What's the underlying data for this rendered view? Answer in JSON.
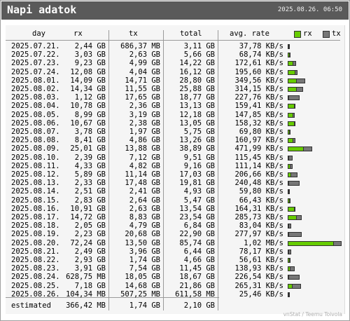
{
  "title": "Napi adatok",
  "timestamp": "2025.08.26. 06:50",
  "headers": {
    "day": "day",
    "rx": "rx",
    "tx": "tx",
    "total": "total",
    "avg_rate": "avg. rate"
  },
  "legend": {
    "rx": "rx",
    "tx": "tx"
  },
  "colors": {
    "rx": "#66cc00",
    "tx": "#777777",
    "titlebar": "#5a5a5a"
  },
  "rows": [
    {
      "day": "2025.07.21.",
      "rx": "2,44 GB",
      "tx": "686,37 MB",
      "total": "3,11 GB",
      "rate": "37,78 KB/s",
      "rx_gb": 2.44,
      "tx_gb": 0.67
    },
    {
      "day": "2025.07.22.",
      "rx": "3,03 GB",
      "tx": "2,63 GB",
      "total": "5,66 GB",
      "rate": "68,74 KB/s",
      "rx_gb": 3.03,
      "tx_gb": 2.63
    },
    {
      "day": "2025.07.23.",
      "rx": "9,23 GB",
      "tx": "4,99 GB",
      "total": "14,22 GB",
      "rate": "172,61 KB/s",
      "rx_gb": 9.23,
      "tx_gb": 4.99
    },
    {
      "day": "2025.07.24.",
      "rx": "12,08 GB",
      "tx": "4,04 GB",
      "total": "16,12 GB",
      "rate": "195,60 KB/s",
      "rx_gb": 12.08,
      "tx_gb": 4.04
    },
    {
      "day": "2025.08.01.",
      "rx": "14,09 GB",
      "tx": "14,71 GB",
      "total": "28,80 GB",
      "rate": "349,56 KB/s",
      "rx_gb": 14.09,
      "tx_gb": 14.71
    },
    {
      "day": "2025.08.02.",
      "rx": "14,34 GB",
      "tx": "11,55 GB",
      "total": "25,88 GB",
      "rate": "314,15 KB/s",
      "rx_gb": 14.34,
      "tx_gb": 11.55
    },
    {
      "day": "2025.08.03.",
      "rx": "1,12 GB",
      "tx": "17,65 GB",
      "total": "18,77 GB",
      "rate": "227,76 KB/s",
      "rx_gb": 1.12,
      "tx_gb": 17.65
    },
    {
      "day": "2025.08.04.",
      "rx": "10,78 GB",
      "tx": "2,36 GB",
      "total": "13,13 GB",
      "rate": "159,41 KB/s",
      "rx_gb": 10.78,
      "tx_gb": 2.36
    },
    {
      "day": "2025.08.05.",
      "rx": "8,99 GB",
      "tx": "3,19 GB",
      "total": "12,18 GB",
      "rate": "147,85 KB/s",
      "rx_gb": 8.99,
      "tx_gb": 3.19
    },
    {
      "day": "2025.08.06.",
      "rx": "10,67 GB",
      "tx": "2,38 GB",
      "total": "13,05 GB",
      "rate": "158,32 KB/s",
      "rx_gb": 10.67,
      "tx_gb": 2.38
    },
    {
      "day": "2025.08.07.",
      "rx": "3,78 GB",
      "tx": "1,97 GB",
      "total": "5,75 GB",
      "rate": "69,80 KB/s",
      "rx_gb": 3.78,
      "tx_gb": 1.97
    },
    {
      "day": "2025.08.08.",
      "rx": "8,41 GB",
      "tx": "4,86 GB",
      "total": "13,26 GB",
      "rate": "160,97 KB/s",
      "rx_gb": 8.41,
      "tx_gb": 4.86
    },
    {
      "day": "2025.08.09.",
      "rx": "25,01 GB",
      "tx": "13,88 GB",
      "total": "38,89 GB",
      "rate": "471,99 KB/s",
      "rx_gb": 25.01,
      "tx_gb": 13.88
    },
    {
      "day": "2025.08.10.",
      "rx": "2,39 GB",
      "tx": "7,12 GB",
      "total": "9,51 GB",
      "rate": "115,45 KB/s",
      "rx_gb": 2.39,
      "tx_gb": 7.12
    },
    {
      "day": "2025.08.11.",
      "rx": "4,33 GB",
      "tx": "4,82 GB",
      "total": "9,16 GB",
      "rate": "111,14 KB/s",
      "rx_gb": 4.33,
      "tx_gb": 4.82
    },
    {
      "day": "2025.08.12.",
      "rx": "5,89 GB",
      "tx": "11,14 GB",
      "total": "17,03 GB",
      "rate": "206,66 KB/s",
      "rx_gb": 5.89,
      "tx_gb": 11.14
    },
    {
      "day": "2025.08.13.",
      "rx": "2,33 GB",
      "tx": "17,48 GB",
      "total": "19,81 GB",
      "rate": "240,48 KB/s",
      "rx_gb": 2.33,
      "tx_gb": 17.48
    },
    {
      "day": "2025.08.14.",
      "rx": "2,51 GB",
      "tx": "2,41 GB",
      "total": "4,93 GB",
      "rate": "59,80 KB/s",
      "rx_gb": 2.51,
      "tx_gb": 2.41
    },
    {
      "day": "2025.08.15.",
      "rx": "2,83 GB",
      "tx": "2,64 GB",
      "total": "5,47 GB",
      "rate": "66,43 KB/s",
      "rx_gb": 2.83,
      "tx_gb": 2.64
    },
    {
      "day": "2025.08.16.",
      "rx": "10,91 GB",
      "tx": "2,63 GB",
      "total": "13,54 GB",
      "rate": "164,31 KB/s",
      "rx_gb": 10.91,
      "tx_gb": 2.63
    },
    {
      "day": "2025.08.17.",
      "rx": "14,72 GB",
      "tx": "8,83 GB",
      "total": "23,54 GB",
      "rate": "285,73 KB/s",
      "rx_gb": 14.72,
      "tx_gb": 8.83
    },
    {
      "day": "2025.08.18.",
      "rx": "2,05 GB",
      "tx": "4,79 GB",
      "total": "6,84 GB",
      "rate": "83,04 KB/s",
      "rx_gb": 2.05,
      "tx_gb": 4.79
    },
    {
      "day": "2025.08.19.",
      "rx": "2,23 GB",
      "tx": "20,68 GB",
      "total": "22,90 GB",
      "rate": "277,97 KB/s",
      "rx_gb": 2.23,
      "tx_gb": 20.68
    },
    {
      "day": "2025.08.20.",
      "rx": "72,24 GB",
      "tx": "13,50 GB",
      "total": "85,74 GB",
      "rate": "1,02 MB/s",
      "rx_gb": 72.24,
      "tx_gb": 13.5
    },
    {
      "day": "2025.08.21.",
      "rx": "2,49 GB",
      "tx": "3,96 GB",
      "total": "6,44 GB",
      "rate": "78,17 KB/s",
      "rx_gb": 2.49,
      "tx_gb": 3.96
    },
    {
      "day": "2025.08.22.",
      "rx": "2,93 GB",
      "tx": "1,74 GB",
      "total": "4,66 GB",
      "rate": "56,61 KB/s",
      "rx_gb": 2.93,
      "tx_gb": 1.74
    },
    {
      "day": "2025.08.23.",
      "rx": "3,91 GB",
      "tx": "7,54 GB",
      "total": "11,45 GB",
      "rate": "138,93 KB/s",
      "rx_gb": 3.91,
      "tx_gb": 7.54
    },
    {
      "day": "2025.08.24.",
      "rx": "628,75 MB",
      "tx": "18,05 GB",
      "total": "18,67 GB",
      "rate": "226,54 KB/s",
      "rx_gb": 0.61,
      "tx_gb": 18.05
    },
    {
      "day": "2025.08.25.",
      "rx": "7,18 GB",
      "tx": "14,68 GB",
      "total": "21,86 GB",
      "rate": "265,31 KB/s",
      "rx_gb": 7.18,
      "tx_gb": 14.68
    },
    {
      "day": "2025.08.26.",
      "rx": "104,34 MB",
      "tx": "507,25 MB",
      "total": "611,58 MB",
      "rate": "25,46 KB/s",
      "rx_gb": 0.1,
      "tx_gb": 0.5
    }
  ],
  "estimated": {
    "label": "estimated",
    "rx": "366,42 MB",
    "tx": "1,74 GB",
    "total": "2,10 GB"
  },
  "footer_note": "vnStat / Teemu Toivola"
}
